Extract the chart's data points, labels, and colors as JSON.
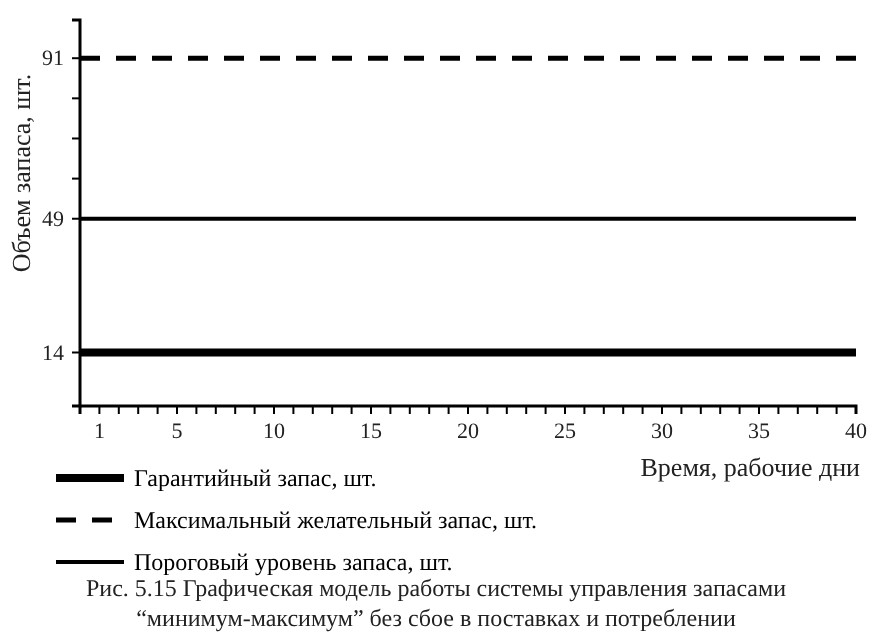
{
  "chart_data": {
    "type": "line",
    "xlabel": "Время, рабочие дни",
    "ylabel": "Объем запаса, шт.",
    "ref_lines": [
      {
        "axis": "y",
        "value": 14,
        "label": "Гарантийный запас, шт.",
        "color": "#000000",
        "line_style": "solid"
      },
      {
        "axis": "y",
        "value": 91,
        "label": "Максимальный желательный запас, шт.",
        "color": "#000000",
        "line_style": "dashed"
      },
      {
        "axis": "y",
        "value": 49,
        "label": "Пороговый уровень запаса, шт.",
        "color": "#000000",
        "line_style": "solid"
      }
    ],
    "xlim": [
      0,
      40
    ],
    "xticks": [
      1,
      {
        "value": 2,
        "label": null
      },
      {
        "value": 3,
        "label": null
      },
      {
        "value": 4,
        "label": null
      },
      5,
      {
        "value": 6,
        "label": null
      },
      {
        "value": 7,
        "label": null
      },
      {
        "value": 8,
        "label": null
      },
      {
        "value": 9,
        "label": null
      },
      10,
      {
        "value": 11,
        "label": null
      },
      {
        "value": 12,
        "label": null
      },
      {
        "value": 13,
        "label": null
      },
      {
        "value": 14,
        "label": null
      },
      15,
      {
        "value": 16,
        "label": null
      },
      {
        "value": 17,
        "label": null
      },
      {
        "value": 18,
        "label": null
      },
      {
        "value": 19,
        "label": null
      },
      20,
      {
        "value": 21,
        "label": null
      },
      {
        "value": 22,
        "label": null
      },
      {
        "value": 23,
        "label": null
      },
      {
        "value": 24,
        "label": null
      },
      25,
      {
        "value": 26,
        "label": null
      },
      {
        "value": 27,
        "label": null
      },
      {
        "value": 28,
        "label": null
      },
      {
        "value": 29,
        "label": null
      },
      30,
      {
        "value": 31,
        "label": null
      },
      {
        "value": 32,
        "label": null
      },
      {
        "value": 33,
        "label": null
      },
      {
        "value": 34,
        "label": null
      },
      35,
      {
        "value": 36,
        "label": null
      },
      {
        "value": 37,
        "label": null
      },
      {
        "value": 38,
        "label": null
      },
      {
        "value": 39,
        "label": null
      },
      40
    ],
    "ylim": [
      0,
      101
    ],
    "yticks": [
      14,
      49,
      {
        "value": 59.5,
        "label": null
      },
      {
        "value": 70,
        "label": null
      },
      {
        "value": 80.5,
        "label": null
      },
      91
    ],
    "legend": "bottom",
    "annotations": [
      "Рис. 5.15 Графическая модель работы системы управления запасами\n“минимум-максимум” без сбое в поставках и потреблении"
    ]
  }
}
